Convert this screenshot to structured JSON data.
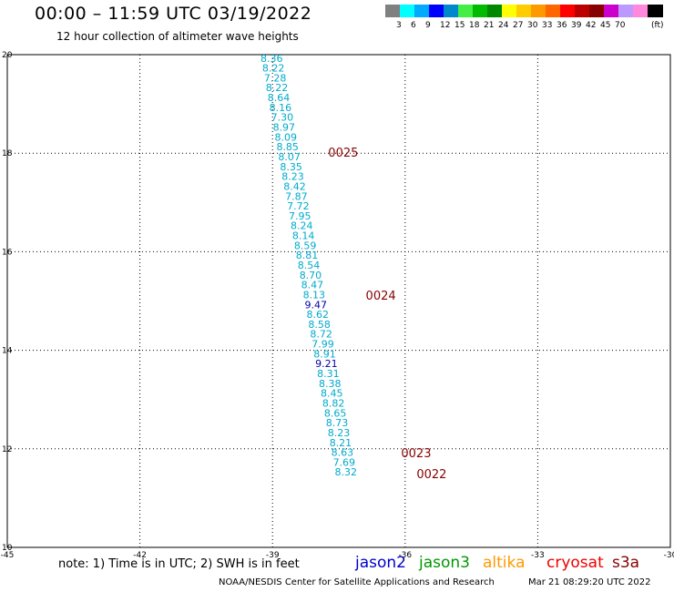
{
  "header": {
    "title": "00:00 – 11:59 UTC 03/19/2022",
    "subtitle": "12 hour collection of altimeter wave heights"
  },
  "legend": {
    "colors": [
      "#808080",
      "#00ffff",
      "#00aaff",
      "#0000ff",
      "#0088cc",
      "#44ee44",
      "#00bb00",
      "#008800",
      "#ffff00",
      "#ffcc00",
      "#ff9900",
      "#ff6600",
      "#ff0000",
      "#bb0000",
      "#880000",
      "#cc00cc",
      "#bb99ff",
      "#ff88dd",
      "#000000"
    ],
    "ticks": [
      "3",
      "6",
      "9",
      "12",
      "15",
      "18",
      "21",
      "24",
      "27",
      "30",
      "33",
      "36",
      "39",
      "42",
      "45",
      "70"
    ],
    "units": "(ft)"
  },
  "footer": {
    "note": "note:  1) Time is in UTC;  2) SWH is in feet",
    "satellites": [
      {
        "name": "jason2",
        "color": "#0000cc"
      },
      {
        "name": "jason3",
        "color": "#009900"
      },
      {
        "name": "altika",
        "color": "#ff9900"
      },
      {
        "name": "cryosat",
        "color": "#ee0000"
      },
      {
        "name": "s3a",
        "color": "#880000"
      }
    ],
    "credit": "NOAA/NESDIS Center for Satellite Applications and Research",
    "timestamp": "Mar 21 08:29:20 UTC 2022"
  },
  "chart_data": {
    "type": "scatter",
    "title": "00:00 – 11:59 UTC 03/19/2022",
    "subtitle": "12 hour collection of altimeter wave heights",
    "xlim": [
      -45,
      -30
    ],
    "ylim": [
      10,
      20
    ],
    "xticks": [
      "-45",
      "-42",
      "-39",
      "-36",
      "-33",
      "-30"
    ],
    "yticks": [
      "10",
      "12",
      "14",
      "16",
      "18",
      "20"
    ],
    "grid": true,
    "points": [
      {
        "lon": -39.02,
        "lat": 19.93,
        "label": "8.36",
        "color": "#00aacc"
      },
      {
        "lon": -38.98,
        "lat": 19.73,
        "label": "8.22",
        "color": "#00aacc"
      },
      {
        "lon": -38.94,
        "lat": 19.53,
        "label": "7.28",
        "color": "#00aacc"
      },
      {
        "lon": -38.9,
        "lat": 19.33,
        "label": "8.22",
        "color": "#00aacc"
      },
      {
        "lon": -38.86,
        "lat": 19.13,
        "label": "8.64",
        "color": "#00aacc"
      },
      {
        "lon": -38.82,
        "lat": 18.93,
        "label": "8.16",
        "color": "#00aacc"
      },
      {
        "lon": -38.78,
        "lat": 18.73,
        "label": "7.30",
        "color": "#00aacc"
      },
      {
        "lon": -38.74,
        "lat": 18.53,
        "label": "8.97",
        "color": "#00aacc"
      },
      {
        "lon": -38.7,
        "lat": 18.33,
        "label": "8.09",
        "color": "#00aacc"
      },
      {
        "lon": -38.66,
        "lat": 18.13,
        "label": "8.85",
        "color": "#00aacc"
      },
      {
        "lon": -38.62,
        "lat": 17.93,
        "label": "8.07",
        "color": "#00aacc"
      },
      {
        "lon": -38.58,
        "lat": 17.73,
        "label": "8.35",
        "color": "#00aacc"
      },
      {
        "lon": -38.54,
        "lat": 17.53,
        "label": "8.23",
        "color": "#00aacc"
      },
      {
        "lon": -38.5,
        "lat": 17.33,
        "label": "8.42",
        "color": "#00aacc"
      },
      {
        "lon": -38.46,
        "lat": 17.13,
        "label": "7.87",
        "color": "#00aacc"
      },
      {
        "lon": -38.42,
        "lat": 16.93,
        "label": "7.72",
        "color": "#00aacc"
      },
      {
        "lon": -38.38,
        "lat": 16.73,
        "label": "7.95",
        "color": "#00aacc"
      },
      {
        "lon": -38.34,
        "lat": 16.53,
        "label": "8.24",
        "color": "#00aacc"
      },
      {
        "lon": -38.3,
        "lat": 16.33,
        "label": "8.14",
        "color": "#00aacc"
      },
      {
        "lon": -38.26,
        "lat": 16.13,
        "label": "8.59",
        "color": "#00aacc"
      },
      {
        "lon": -38.22,
        "lat": 15.93,
        "label": "8.81",
        "color": "#00aacc"
      },
      {
        "lon": -38.18,
        "lat": 15.73,
        "label": "8.54",
        "color": "#00aacc"
      },
      {
        "lon": -38.14,
        "lat": 15.53,
        "label": "8.70",
        "color": "#00aacc"
      },
      {
        "lon": -38.1,
        "lat": 15.33,
        "label": "8.47",
        "color": "#00aacc"
      },
      {
        "lon": -38.06,
        "lat": 15.13,
        "label": "8.13",
        "color": "#00aacc"
      },
      {
        "lon": -38.02,
        "lat": 14.93,
        "label": "9.47",
        "color": "#0000aa"
      },
      {
        "lon": -37.98,
        "lat": 14.73,
        "label": "8.62",
        "color": "#00aacc"
      },
      {
        "lon": -37.94,
        "lat": 14.53,
        "label": "8.58",
        "color": "#00aacc"
      },
      {
        "lon": -37.9,
        "lat": 14.33,
        "label": "8.72",
        "color": "#00aacc"
      },
      {
        "lon": -37.86,
        "lat": 14.13,
        "label": "7.99",
        "color": "#00aacc"
      },
      {
        "lon": -37.82,
        "lat": 13.93,
        "label": "8.91",
        "color": "#00aacc"
      },
      {
        "lon": -37.78,
        "lat": 13.73,
        "label": "9.21",
        "color": "#0000aa"
      },
      {
        "lon": -37.74,
        "lat": 13.53,
        "label": "8.31",
        "color": "#00aacc"
      },
      {
        "lon": -37.7,
        "lat": 13.33,
        "label": "8.38",
        "color": "#00aacc"
      },
      {
        "lon": -37.66,
        "lat": 13.13,
        "label": "8.45",
        "color": "#00aacc"
      },
      {
        "lon": -37.62,
        "lat": 12.93,
        "label": "8.82",
        "color": "#00aacc"
      },
      {
        "lon": -37.58,
        "lat": 12.73,
        "label": "8.65",
        "color": "#00aacc"
      },
      {
        "lon": -37.54,
        "lat": 12.53,
        "label": "8.73",
        "color": "#00aacc"
      },
      {
        "lon": -37.5,
        "lat": 12.33,
        "label": "8.23",
        "color": "#00aacc"
      },
      {
        "lon": -37.46,
        "lat": 12.13,
        "label": "8.21",
        "color": "#00aacc"
      },
      {
        "lon": -37.42,
        "lat": 11.93,
        "label": "8.63",
        "color": "#00aacc"
      },
      {
        "lon": -37.38,
        "lat": 11.73,
        "label": "7.69",
        "color": "#00aacc"
      },
      {
        "lon": -37.34,
        "lat": 11.53,
        "label": "8.32",
        "color": "#00aacc"
      }
    ],
    "annotations": [
      {
        "text": "0025",
        "lon": -37.4,
        "lat": 18.0
      },
      {
        "text": "0024",
        "lon": -36.55,
        "lat": 15.1
      },
      {
        "text": "0023",
        "lon": -35.75,
        "lat": 11.9
      },
      {
        "text": "0022",
        "lon": -35.4,
        "lat": 11.48
      }
    ],
    "annotation_color": "#880000"
  }
}
